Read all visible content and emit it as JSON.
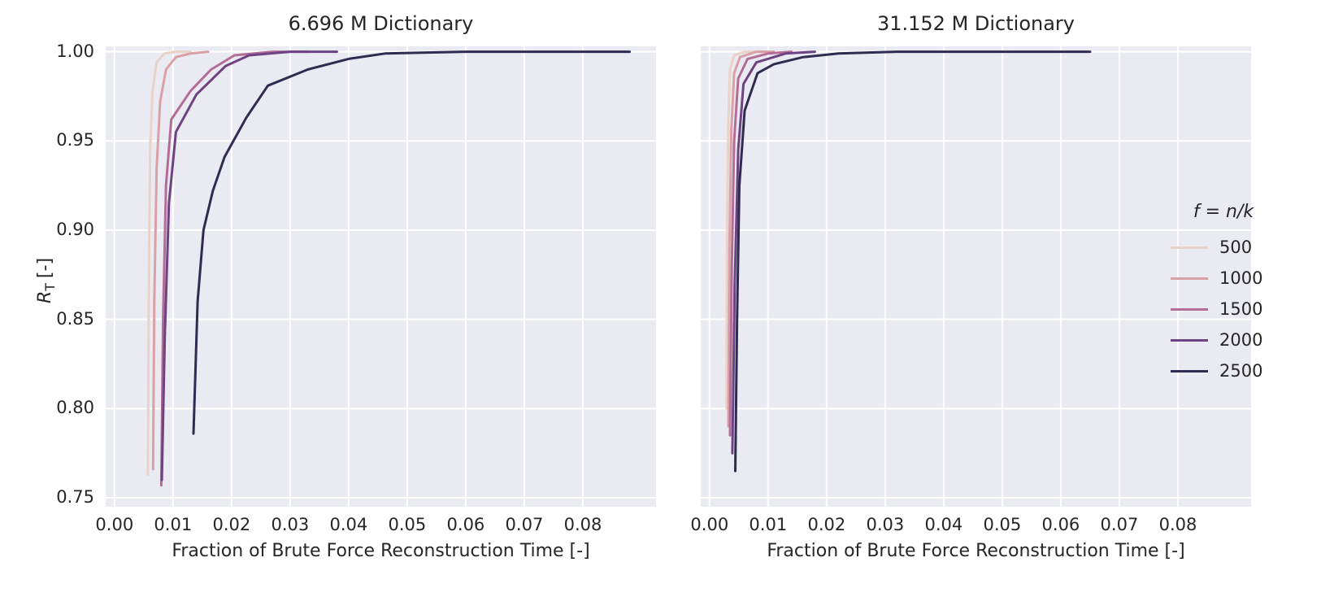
{
  "axis": {
    "ylabel_symbol": "R",
    "ylabel_subscript": "T",
    "ylabel_units": "[-]"
  },
  "legend": {
    "title": "f = n/k",
    "entries": [
      {
        "label": "500",
        "color": "#e9d2c8"
      },
      {
        "label": "1000",
        "color": "#d9a0a6"
      },
      {
        "label": "1500",
        "color": "#b36d96"
      },
      {
        "label": "2000",
        "color": "#6e4382"
      },
      {
        "label": "2500",
        "color": "#302b51"
      }
    ]
  },
  "chart_data": [
    {
      "type": "line",
      "title": "6.696 M Dictionary",
      "xlabel": "Fraction of Brute Force Reconstruction Time [-]",
      "ylabel": "R_T [-]",
      "xlim": [
        -0.0015,
        0.0925
      ],
      "ylim": [
        0.745,
        1.003
      ],
      "grid": true,
      "xticks": [
        0.0,
        0.01,
        0.02,
        0.03,
        0.04,
        0.05,
        0.06,
        0.07,
        0.08
      ],
      "xtick_labels": [
        "0.00",
        "0.01",
        "0.02",
        "0.03",
        "0.04",
        "0.05",
        "0.06",
        "0.07",
        "0.08"
      ],
      "yticks": [
        0.75,
        0.8,
        0.85,
        0.9,
        0.95,
        1.0
      ],
      "ytick_labels": [
        "0.75",
        "0.80",
        "0.85",
        "0.90",
        "0.95",
        "1.00"
      ],
      "show_yticklabels": true,
      "series": [
        {
          "name": "500",
          "color": "#e9d2c8",
          "points": [
            [
              0.0057,
              0.763
            ],
            [
              0.0059,
              0.88
            ],
            [
              0.0061,
              0.945
            ],
            [
              0.0065,
              0.978
            ],
            [
              0.0072,
              0.994
            ],
            [
              0.0085,
              0.999
            ],
            [
              0.0105,
              1.0
            ],
            [
              0.013,
              1.0
            ]
          ]
        },
        {
          "name": "1000",
          "color": "#d9a0a6",
          "points": [
            [
              0.0066,
              0.766
            ],
            [
              0.0068,
              0.86
            ],
            [
              0.0072,
              0.935
            ],
            [
              0.0078,
              0.972
            ],
            [
              0.0088,
              0.99
            ],
            [
              0.0105,
              0.997
            ],
            [
              0.013,
              0.999
            ],
            [
              0.016,
              1.0
            ]
          ]
        },
        {
          "name": "1500",
          "color": "#b36d96",
          "points": [
            [
              0.008,
              0.757
            ],
            [
              0.0083,
              0.85
            ],
            [
              0.0088,
              0.925
            ],
            [
              0.0097,
              0.962
            ],
            [
              0.013,
              0.978
            ],
            [
              0.0165,
              0.99
            ],
            [
              0.0205,
              0.998
            ],
            [
              0.027,
              1.0
            ],
            [
              0.033,
              1.0
            ]
          ]
        },
        {
          "name": "2000",
          "color": "#6e4382",
          "points": [
            [
              0.0081,
              0.76
            ],
            [
              0.0086,
              0.84
            ],
            [
              0.0093,
              0.915
            ],
            [
              0.0105,
              0.955
            ],
            [
              0.014,
              0.976
            ],
            [
              0.019,
              0.992
            ],
            [
              0.023,
              0.998
            ],
            [
              0.03,
              1.0
            ],
            [
              0.038,
              1.0
            ]
          ]
        },
        {
          "name": "2500",
          "color": "#302b51",
          "points": [
            [
              0.0135,
              0.786
            ],
            [
              0.0142,
              0.86
            ],
            [
              0.0152,
              0.9
            ],
            [
              0.0168,
              0.922
            ],
            [
              0.0188,
              0.941
            ],
            [
              0.0225,
              0.963
            ],
            [
              0.0262,
              0.981
            ],
            [
              0.033,
              0.99
            ],
            [
              0.04,
              0.996
            ],
            [
              0.0462,
              0.999
            ],
            [
              0.06,
              1.0
            ],
            [
              0.088,
              1.0
            ]
          ]
        }
      ]
    },
    {
      "type": "line",
      "title": "31.152 M Dictionary",
      "xlabel": "Fraction of Brute Force Reconstruction Time [-]",
      "ylabel": "R_T [-]",
      "xlim": [
        -0.0015,
        0.0925
      ],
      "ylim": [
        0.745,
        1.003
      ],
      "grid": true,
      "xticks": [
        0.0,
        0.01,
        0.02,
        0.03,
        0.04,
        0.05,
        0.06,
        0.07,
        0.08
      ],
      "xtick_labels": [
        "0.00",
        "0.01",
        "0.02",
        "0.03",
        "0.04",
        "0.05",
        "0.06",
        "0.07",
        "0.08"
      ],
      "yticks": [
        0.75,
        0.8,
        0.85,
        0.9,
        0.95,
        1.0
      ],
      "ytick_labels": [
        "0.75",
        "0.80",
        "0.85",
        "0.90",
        "0.95",
        "1.00"
      ],
      "show_yticklabels": false,
      "series": [
        {
          "name": "500",
          "color": "#e9d2c8",
          "points": [
            [
              0.0029,
              0.8
            ],
            [
              0.003,
              0.9
            ],
            [
              0.0032,
              0.96
            ],
            [
              0.0035,
              0.99
            ],
            [
              0.0042,
              0.998
            ],
            [
              0.006,
              1.0
            ],
            [
              0.009,
              1.0
            ]
          ]
        },
        {
          "name": "1000",
          "color": "#d9a0a6",
          "points": [
            [
              0.0032,
              0.79
            ],
            [
              0.0034,
              0.89
            ],
            [
              0.0037,
              0.955
            ],
            [
              0.0042,
              0.988
            ],
            [
              0.0052,
              0.997
            ],
            [
              0.008,
              1.0
            ],
            [
              0.011,
              1.0
            ]
          ]
        },
        {
          "name": "1500",
          "color": "#b36d96",
          "points": [
            [
              0.0035,
              0.785
            ],
            [
              0.0038,
              0.88
            ],
            [
              0.0042,
              0.95
            ],
            [
              0.0049,
              0.985
            ],
            [
              0.0065,
              0.996
            ],
            [
              0.01,
              0.999
            ],
            [
              0.014,
              1.0
            ]
          ]
        },
        {
          "name": "2000",
          "color": "#6e4382",
          "points": [
            [
              0.0039,
              0.775
            ],
            [
              0.0043,
              0.87
            ],
            [
              0.0049,
              0.945
            ],
            [
              0.0058,
              0.982
            ],
            [
              0.008,
              0.994
            ],
            [
              0.013,
              0.999
            ],
            [
              0.018,
              1.0
            ]
          ]
        },
        {
          "name": "2500",
          "color": "#302b51",
          "points": [
            [
              0.0044,
              0.765
            ],
            [
              0.0047,
              0.85
            ],
            [
              0.0051,
              0.925
            ],
            [
              0.006,
              0.967
            ],
            [
              0.0082,
              0.988
            ],
            [
              0.011,
              0.993
            ],
            [
              0.016,
              0.997
            ],
            [
              0.022,
              0.999
            ],
            [
              0.032,
              1.0
            ],
            [
              0.065,
              1.0
            ]
          ]
        }
      ]
    }
  ]
}
